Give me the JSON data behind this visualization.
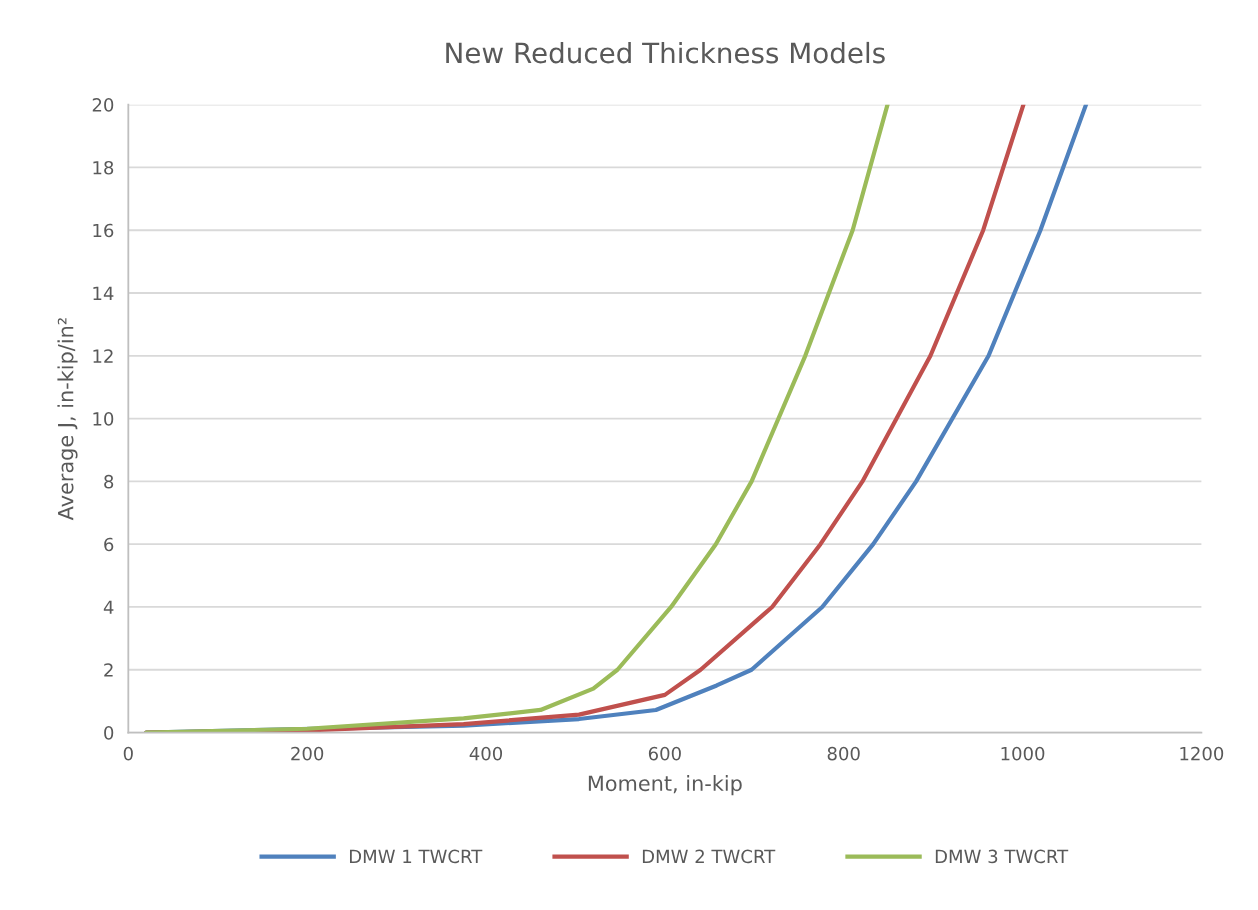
{
  "chart_data": {
    "type": "line",
    "title": "New Reduced Thickness Models",
    "xlabel": "Moment, in-kip",
    "ylabel": "Average J, in-kip/in²",
    "xlim": [
      0,
      1200
    ],
    "xticks": [
      0,
      200,
      400,
      600,
      800,
      1000,
      1200
    ],
    "ylim": [
      0,
      20
    ],
    "yticks": [
      0,
      2,
      4,
      6,
      8,
      10,
      12,
      14,
      16,
      18,
      20
    ],
    "grid": "y",
    "legend": "bottom",
    "marker": "none",
    "line_style": "solid",
    "series": [
      {
        "name": "DMW 1 TWCRT",
        "color": "#4f81bd",
        "x": [
          20,
          375,
          504,
          590,
          658,
          697,
          776,
          833,
          881,
          962,
          1020,
          1071
        ],
        "values": [
          0,
          0.22,
          0.43,
          0.72,
          1.5,
          2,
          4,
          6,
          8,
          12,
          16,
          20
        ]
      },
      {
        "name": "DMW 2 TWCRT",
        "color": "#c0504d",
        "x": [
          20,
          200,
          375,
          504,
          600,
          640,
          720,
          774,
          821,
          897,
          956,
          1001
        ],
        "values": [
          0,
          0.07,
          0.27,
          0.57,
          1.2,
          2,
          4,
          6,
          8,
          12,
          16,
          20
        ]
      },
      {
        "name": "DMW 3 TWCRT",
        "color": "#9bbb59",
        "x": [
          20,
          200,
          375,
          461,
          520,
          547,
          607,
          657,
          697,
          757,
          810,
          849
        ],
        "values": [
          0,
          0.12,
          0.45,
          0.72,
          1.4,
          2,
          4,
          6,
          8,
          12,
          16,
          20
        ]
      }
    ]
  }
}
